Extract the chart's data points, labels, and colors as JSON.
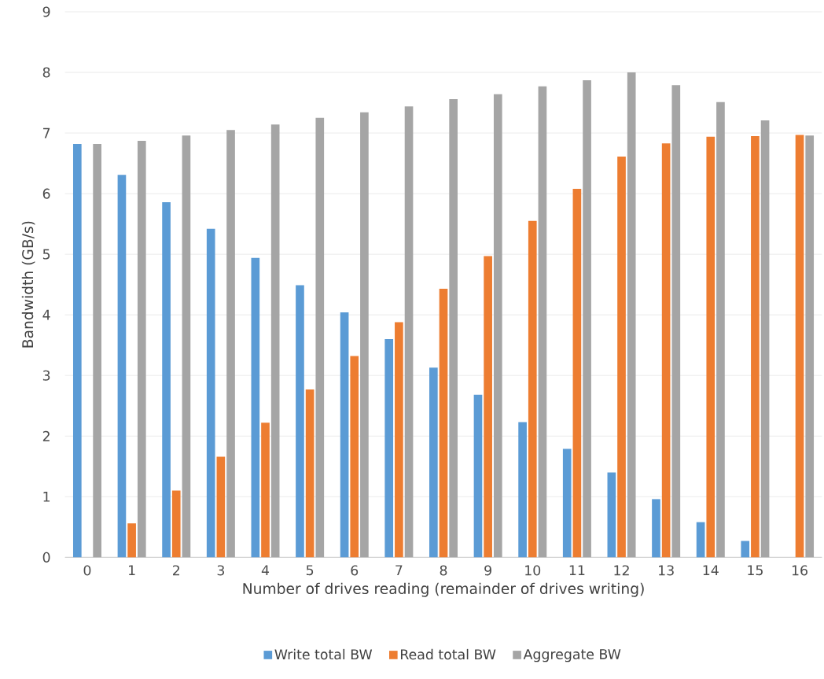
{
  "chart_data": {
    "type": "bar",
    "xlabel": "Number of drives reading (remainder of drives writing)",
    "ylabel": "Bandwidth (GB/s)",
    "categories": [
      "0",
      "1",
      "2",
      "3",
      "4",
      "5",
      "6",
      "7",
      "8",
      "9",
      "10",
      "11",
      "12",
      "13",
      "14",
      "15",
      "16"
    ],
    "series": [
      {
        "name": "Write total BW",
        "color": "#5b9bd5",
        "values": [
          6.82,
          6.31,
          5.86,
          5.42,
          4.94,
          4.49,
          4.04,
          3.6,
          3.13,
          2.68,
          2.23,
          1.79,
          1.4,
          0.96,
          0.58,
          0.27,
          null
        ]
      },
      {
        "name": "Read total BW",
        "color": "#ed7d31",
        "values": [
          null,
          0.56,
          1.1,
          1.66,
          2.22,
          2.77,
          3.32,
          3.88,
          4.43,
          4.97,
          5.55,
          6.08,
          6.61,
          6.83,
          6.94,
          6.95,
          6.97
        ]
      },
      {
        "name": "Aggregate BW",
        "color": "#a5a5a5",
        "values": [
          6.82,
          6.87,
          6.96,
          7.05,
          7.14,
          7.25,
          7.34,
          7.44,
          7.56,
          7.64,
          7.77,
          7.87,
          8.0,
          7.79,
          7.51,
          7.21,
          6.96
        ]
      }
    ],
    "ylim": [
      0,
      9
    ],
    "yticks": [
      0,
      1,
      2,
      3,
      4,
      5,
      6,
      7,
      8,
      9
    ],
    "grid": "y",
    "legend": "bottom"
  }
}
